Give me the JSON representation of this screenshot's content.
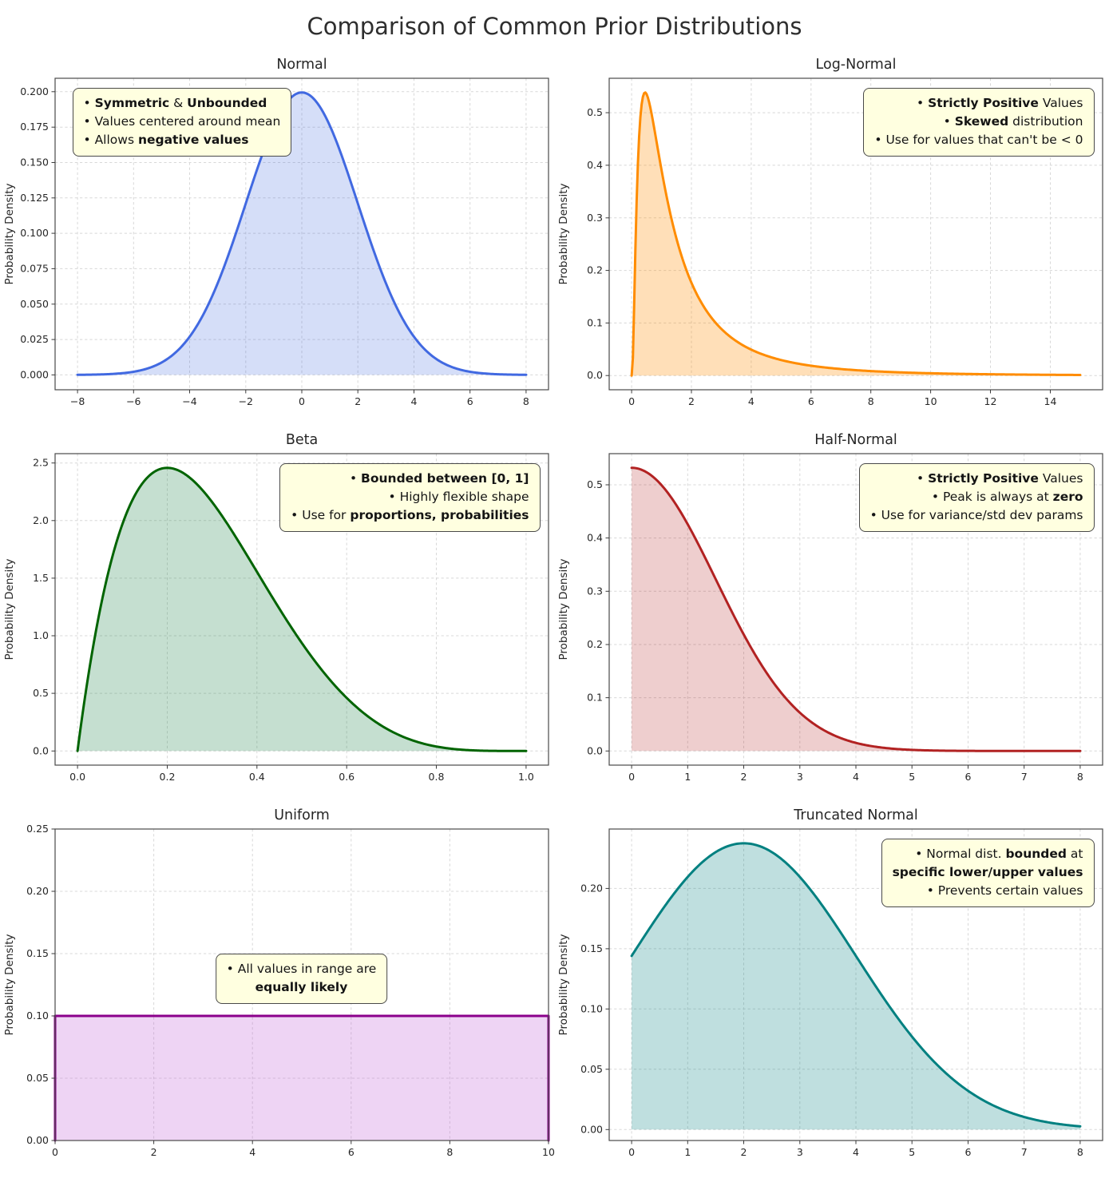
{
  "page": {
    "title": "Comparison of Common Prior Distributions"
  },
  "chart_data": [
    {
      "id": "normal",
      "type": "area",
      "title": "Normal",
      "xlabel": "",
      "ylabel": "Probability Density",
      "line_color": "#4169e1",
      "fill_color": "#4169e1",
      "fill_opacity": 0.22,
      "xlim": [
        -8.8,
        8.8
      ],
      "ylim": [
        -0.0105,
        0.2095
      ],
      "x_ticks": [
        -8,
        -6,
        -4,
        -2,
        0,
        2,
        4,
        6,
        8
      ],
      "x_tick_labels": [
        "−8",
        "−6",
        "−4",
        "−2",
        "0",
        "2",
        "4",
        "6",
        "8"
      ],
      "y_ticks": [
        0,
        0.025,
        0.05,
        0.075,
        0.1,
        0.125,
        0.15,
        0.175,
        0.2
      ],
      "y_tick_labels": [
        "0.000",
        "0.025",
        "0.050",
        "0.075",
        "0.100",
        "0.125",
        "0.150",
        "0.175",
        "0.200"
      ],
      "dist": {
        "name": "normal",
        "mean": 0,
        "sd": 2,
        "from": -8,
        "to": 8
      },
      "peak_density": 0.1995,
      "annotation": {
        "pos": "top-left",
        "text_align": "left",
        "lines": [
          [
            {
              "t": "• "
            },
            {
              "t": "Symmetric",
              "b": true
            },
            {
              "t": " & "
            },
            {
              "t": "Unbounded",
              "b": true
            }
          ],
          [
            {
              "t": "• Values centered around mean"
            }
          ],
          [
            {
              "t": "• Allows "
            },
            {
              "t": "negative values",
              "b": true
            }
          ]
        ]
      }
    },
    {
      "id": "log-normal",
      "type": "area",
      "title": "Log-Normal",
      "xlabel": "",
      "ylabel": "Probability Density",
      "line_color": "#ff8c00",
      "fill_color": "#ff8c00",
      "fill_opacity": 0.28,
      "xlim": [
        -0.75,
        15.75
      ],
      "ylim": [
        -0.027,
        0.5655
      ],
      "x_ticks": [
        0,
        2,
        4,
        6,
        8,
        10,
        12,
        14
      ],
      "x_tick_labels": [
        "0",
        "2",
        "4",
        "6",
        "8",
        "10",
        "12",
        "14"
      ],
      "y_ticks": [
        0,
        0.1,
        0.2,
        0.3,
        0.4,
        0.5
      ],
      "y_tick_labels": [
        "0.0",
        "0.1",
        "0.2",
        "0.3",
        "0.4",
        "0.5"
      ],
      "dist": {
        "name": "lognormal",
        "mu": 0.2,
        "sigma": 1.0,
        "from": 0.001,
        "to": 15
      },
      "peak_density": 0.5385,
      "annotation": {
        "pos": "top-right",
        "text_align": "right",
        "lines": [
          [
            {
              "t": "• "
            },
            {
              "t": "Strictly Positive",
              "b": true
            },
            {
              "t": " Values"
            }
          ],
          [
            {
              "t": "• "
            },
            {
              "t": "Skewed",
              "b": true
            },
            {
              "t": " distribution"
            }
          ],
          [
            {
              "t": "• Use for values that can't be < 0"
            }
          ]
        ]
      }
    },
    {
      "id": "beta",
      "type": "area",
      "title": "Beta",
      "xlabel": "",
      "ylabel": "Probability Density",
      "line_color": "#006400",
      "fill_color": "#2e8b57",
      "fill_opacity": 0.28,
      "xlim": [
        -0.05,
        1.05
      ],
      "ylim": [
        -0.123,
        2.581
      ],
      "x_ticks": [
        0,
        0.2,
        0.4,
        0.6,
        0.8,
        1.0
      ],
      "x_tick_labels": [
        "0.0",
        "0.2",
        "0.4",
        "0.6",
        "0.8",
        "1.0"
      ],
      "y_ticks": [
        0,
        0.5,
        1.0,
        1.5,
        2.0,
        2.5
      ],
      "y_tick_labels": [
        "0.0",
        "0.5",
        "1.0",
        "1.5",
        "2.0",
        "2.5"
      ],
      "dist": {
        "name": "beta",
        "alpha": 2,
        "beta": 5,
        "from": 0,
        "to": 1
      },
      "peak_density": 2.458,
      "annotation": {
        "pos": "top-right",
        "text_align": "right",
        "lines": [
          [
            {
              "t": "• "
            },
            {
              "t": "Bounded between [0, 1]",
              "b": true
            }
          ],
          [
            {
              "t": "• Highly flexible shape"
            }
          ],
          [
            {
              "t": "• Use for "
            },
            {
              "t": "proportions, probabilities",
              "b": true
            }
          ]
        ]
      }
    },
    {
      "id": "half-normal",
      "type": "area",
      "title": "Half-Normal",
      "xlabel": "",
      "ylabel": "Probability Density",
      "line_color": "#b22222",
      "fill_color": "#b22222",
      "fill_opacity": 0.22,
      "xlim": [
        -0.4,
        8.4
      ],
      "ylim": [
        -0.0266,
        0.5585
      ],
      "x_ticks": [
        0,
        1,
        2,
        3,
        4,
        5,
        6,
        7,
        8
      ],
      "x_tick_labels": [
        "0",
        "1",
        "2",
        "3",
        "4",
        "5",
        "6",
        "7",
        "8"
      ],
      "y_ticks": [
        0,
        0.1,
        0.2,
        0.3,
        0.4,
        0.5
      ],
      "y_tick_labels": [
        "0.0",
        "0.1",
        "0.2",
        "0.3",
        "0.4",
        "0.5"
      ],
      "dist": {
        "name": "halfnormal",
        "sigma": 1.5,
        "from": 0,
        "to": 8
      },
      "peak_density": 0.5319,
      "annotation": {
        "pos": "top-right",
        "text_align": "right",
        "lines": [
          [
            {
              "t": "• "
            },
            {
              "t": "Strictly Positive",
              "b": true
            },
            {
              "t": " Values"
            }
          ],
          [
            {
              "t": "• Peak is always at "
            },
            {
              "t": "zero",
              "b": true
            }
          ],
          [
            {
              "t": "• Use for variance/std dev params"
            }
          ]
        ]
      }
    },
    {
      "id": "uniform",
      "type": "area",
      "title": "Uniform",
      "xlabel": "",
      "ylabel": "Probability Density",
      "line_color": "#8b008b",
      "fill_color": "#ba55d3",
      "fill_opacity": 0.25,
      "xlim": [
        0,
        10
      ],
      "ylim": [
        0,
        0.25
      ],
      "x_ticks": [
        0,
        2,
        4,
        6,
        8,
        10
      ],
      "x_tick_labels": [
        "0",
        "2",
        "4",
        "6",
        "8",
        "10"
      ],
      "y_ticks": [
        0,
        0.05,
        0.1,
        0.15,
        0.2,
        0.25
      ],
      "y_tick_labels": [
        "0.00",
        "0.05",
        "0.10",
        "0.15",
        "0.20",
        "0.25"
      ],
      "dist": {
        "name": "uniform",
        "low": 0,
        "high": 10,
        "density": 0.1
      },
      "peak_density": 0.1,
      "annotation": {
        "pos": "center",
        "text_align": "center",
        "lines": [
          [
            {
              "t": "• All values in range are"
            }
          ],
          [
            {
              "t": "equally likely",
              "b": true
            }
          ]
        ]
      }
    },
    {
      "id": "truncated-normal",
      "type": "area",
      "title": "Truncated Normal",
      "xlabel": "",
      "ylabel": "Probability Density",
      "line_color": "#008080",
      "fill_color": "#008080",
      "fill_opacity": 0.25,
      "xlim": [
        -0.4,
        8.4
      ],
      "ylim": [
        -0.0091,
        0.2493
      ],
      "x_ticks": [
        0,
        1,
        2,
        3,
        4,
        5,
        6,
        7,
        8
      ],
      "x_tick_labels": [
        "0",
        "1",
        "2",
        "3",
        "4",
        "5",
        "6",
        "7",
        "8"
      ],
      "y_ticks": [
        0,
        0.05,
        0.1,
        0.15,
        0.2
      ],
      "y_tick_labels": [
        "0.00",
        "0.05",
        "0.10",
        "0.15",
        "0.20"
      ],
      "dist": {
        "name": "truncnorm",
        "mean": 2,
        "sd": 2,
        "lower": 0,
        "upper": 8,
        "from": 0,
        "to": 8
      },
      "peak_density": 0.2375,
      "annotation": {
        "pos": "top-right",
        "text_align": "right",
        "lines": [
          [
            {
              "t": "• Normal dist. "
            },
            {
              "t": "bounded",
              "b": true
            },
            {
              "t": " at"
            }
          ],
          [
            {
              "t": "specific lower/upper values",
              "b": true
            }
          ],
          [
            {
              "t": "• Prevents certain values"
            }
          ]
        ]
      }
    }
  ]
}
